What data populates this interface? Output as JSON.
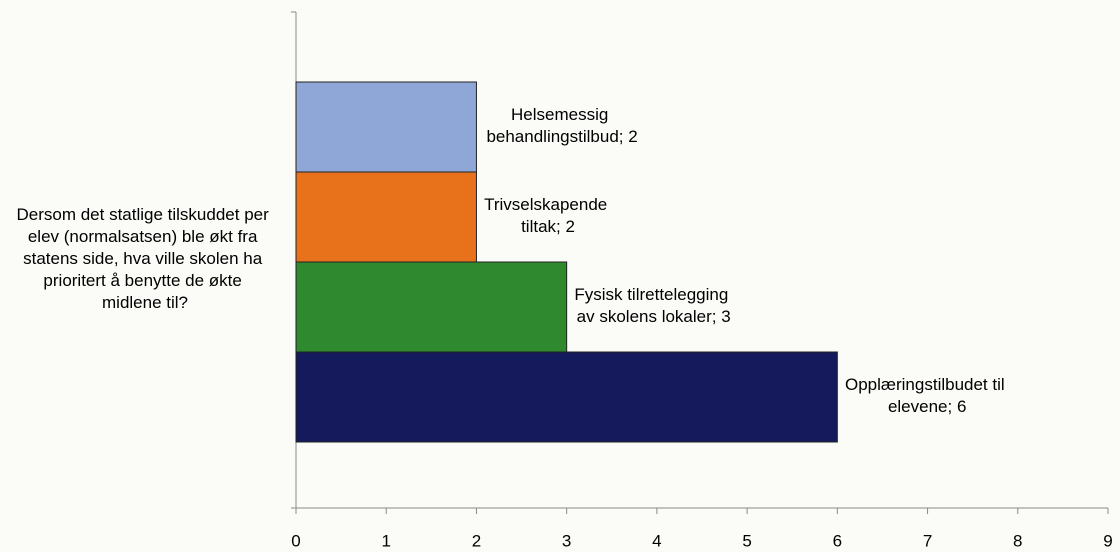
{
  "chart_data": {
    "type": "bar",
    "orientation": "horizontal",
    "categories": [
      "Dersom det statlige tilskuddet per elev (normalsatsen) ble økt fra statens side, hva ville skolen ha prioritert å benytte de økte midlene til?"
    ],
    "series": [
      {
        "name": "Helsemessig behandlingstilbud",
        "color": "#8ea7d6",
        "values": [
          2
        ],
        "value_labels": [
          "Helsemessig behandlingstilbud; 2"
        ]
      },
      {
        "name": "Trivselskapende tiltak",
        "color": "#e8721c",
        "values": [
          2
        ],
        "value_labels": [
          "Trivselskapende tiltak; 2"
        ]
      },
      {
        "name": "Fysisk tilrettelegging av skolens lokaler",
        "color": "#2f8a2f",
        "values": [
          3
        ],
        "value_labels": [
          "Fysisk tilrettelegging av skolens lokaler; 3"
        ]
      },
      {
        "name": "Opplæringstilbudet til elevene",
        "color": "#141a5c",
        "values": [
          6
        ],
        "value_labels": [
          "Opplæringstilbudet til elevene; 6"
        ]
      }
    ],
    "xlim": [
      0,
      9
    ],
    "xticks": [
      0,
      1,
      2,
      3,
      4,
      5,
      6,
      7,
      8,
      9
    ]
  }
}
